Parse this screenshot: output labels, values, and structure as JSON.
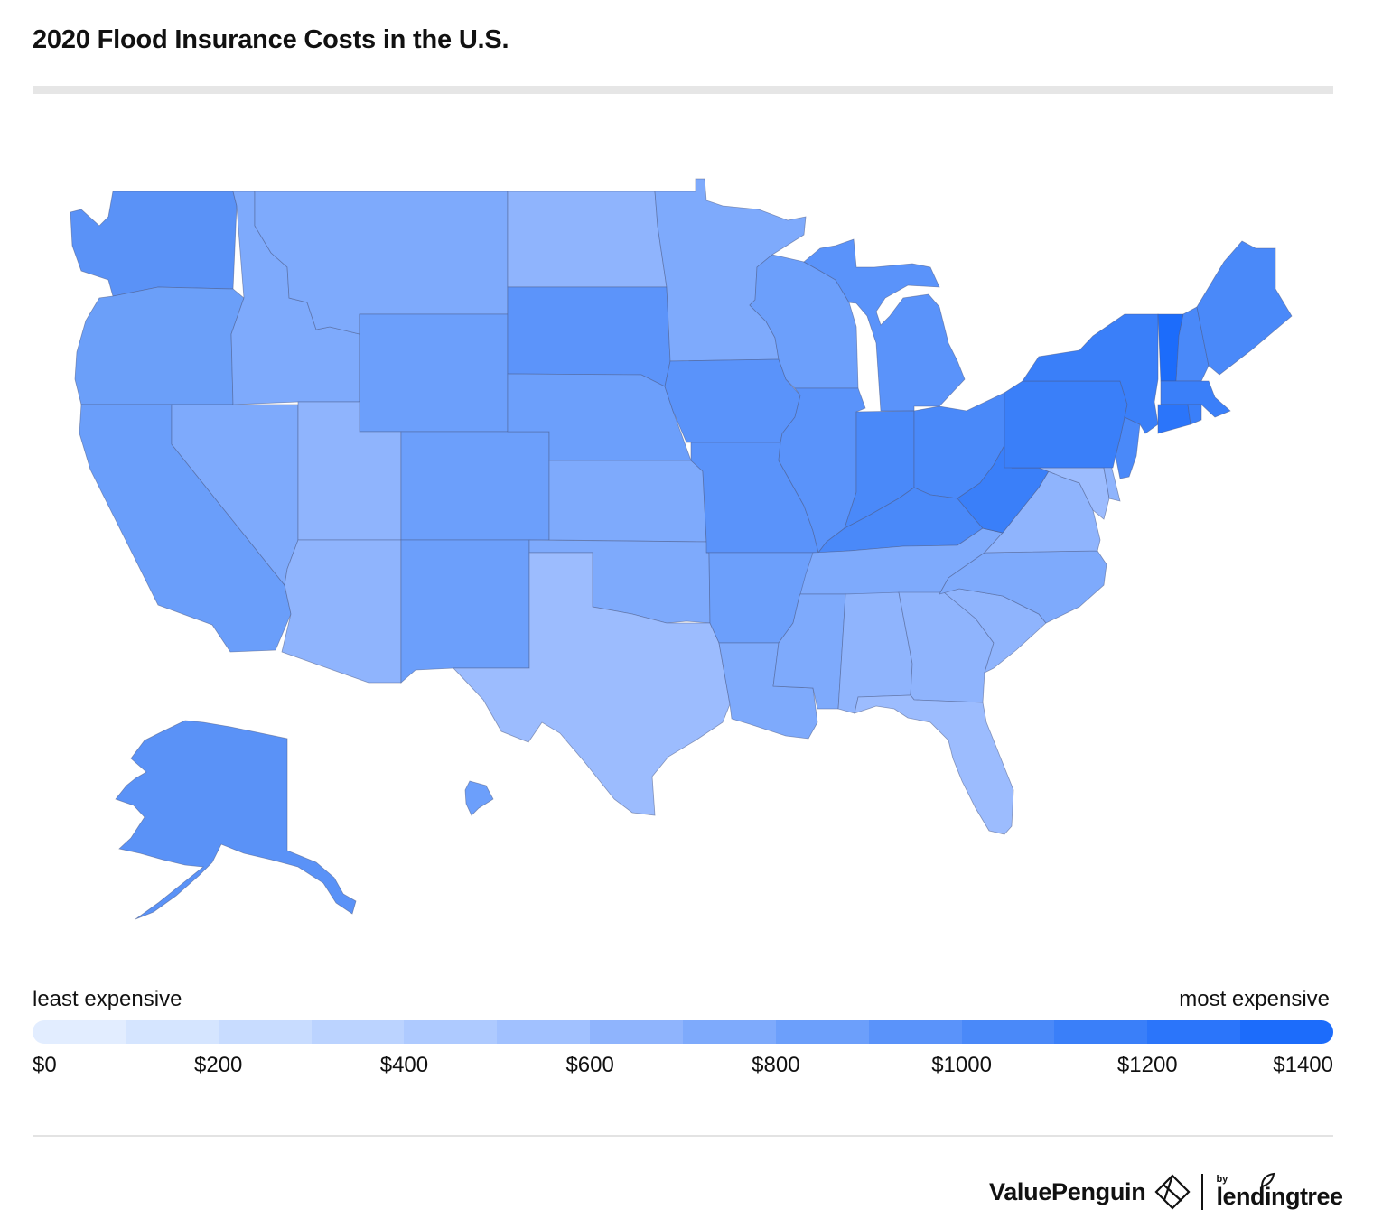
{
  "title": "2020 Flood Insurance Costs in the U.S.",
  "legend": {
    "low_label": "least expensive",
    "high_label": "most expensive",
    "scale_colors": [
      "#e2edff",
      "#d5e5ff",
      "#c8dcff",
      "#bbd3ff",
      "#aecaff",
      "#a1c1ff",
      "#8fb4fd",
      "#7eaafc",
      "#6c9ffb",
      "#5a93fa",
      "#4a89f9",
      "#3a7ff9",
      "#2b75fa",
      "#1c6cfb"
    ],
    "ticks": [
      "$0",
      "$200",
      "$400",
      "$600",
      "$800",
      "$1000",
      "$1200",
      "$1400"
    ]
  },
  "states": [
    {
      "id": "WA",
      "color": "#5a92f7"
    },
    {
      "id": "OR",
      "color": "#6b9ff9"
    },
    {
      "id": "CA",
      "color": "#6a9efa"
    },
    {
      "id": "NV",
      "color": "#7eaafc"
    },
    {
      "id": "ID",
      "color": "#7eaafc"
    },
    {
      "id": "MT",
      "color": "#7eaafc"
    },
    {
      "id": "WY",
      "color": "#6c9ffb"
    },
    {
      "id": "UT",
      "color": "#8fb4fd"
    },
    {
      "id": "AZ",
      "color": "#8fb4fd"
    },
    {
      "id": "CO",
      "color": "#6c9ffb"
    },
    {
      "id": "NM",
      "color": "#6c9ffb"
    },
    {
      "id": "ND",
      "color": "#8fb4fd"
    },
    {
      "id": "SD",
      "color": "#5c94fa"
    },
    {
      "id": "NE",
      "color": "#6c9ffb"
    },
    {
      "id": "KS",
      "color": "#7eaafc"
    },
    {
      "id": "OK",
      "color": "#7eaafc"
    },
    {
      "id": "TX",
      "color": "#9cbcfe"
    },
    {
      "id": "MN",
      "color": "#7eaafc"
    },
    {
      "id": "IA",
      "color": "#5a93fa"
    },
    {
      "id": "MO",
      "color": "#5a93fa"
    },
    {
      "id": "AR",
      "color": "#6c9ffb"
    },
    {
      "id": "LA",
      "color": "#7eaafc"
    },
    {
      "id": "WI",
      "color": "#6c9ffb"
    },
    {
      "id": "IL",
      "color": "#5a93fa"
    },
    {
      "id": "MS",
      "color": "#7eaafc"
    },
    {
      "id": "MI",
      "color": "#5a93fa"
    },
    {
      "id": "IN",
      "color": "#4a89f9"
    },
    {
      "id": "OH",
      "color": "#4a89f9"
    },
    {
      "id": "KY",
      "color": "#4a89f9"
    },
    {
      "id": "TN",
      "color": "#7eaafc"
    },
    {
      "id": "AL",
      "color": "#8fb4fd"
    },
    {
      "id": "GA",
      "color": "#8fb4fd"
    },
    {
      "id": "FL",
      "color": "#9cbcfe"
    },
    {
      "id": "SC",
      "color": "#8fb4fd"
    },
    {
      "id": "NC",
      "color": "#7eaafc"
    },
    {
      "id": "VA",
      "color": "#8fb4fd"
    },
    {
      "id": "WV",
      "color": "#3a7ff9"
    },
    {
      "id": "PA",
      "color": "#3a7ff9"
    },
    {
      "id": "NY",
      "color": "#3a7ff9"
    },
    {
      "id": "MD",
      "color": "#9cbcfe"
    },
    {
      "id": "DE",
      "color": "#8fb4fd"
    },
    {
      "id": "NJ",
      "color": "#4a89f9"
    },
    {
      "id": "VT",
      "color": "#1c6cfb"
    },
    {
      "id": "NH",
      "color": "#4a89f9"
    },
    {
      "id": "ME",
      "color": "#4a89f9"
    },
    {
      "id": "MA",
      "color": "#3a7ff9"
    },
    {
      "id": "CT",
      "color": "#2b75fa"
    },
    {
      "id": "RI",
      "color": "#3a7ff9"
    },
    {
      "id": "AK",
      "color": "#5a92f7"
    },
    {
      "id": "HI",
      "color": "#6c9ffb"
    }
  ],
  "branding": {
    "valuepenguin": "ValuePenguin",
    "by": "by",
    "lendingtree": "lendingtree"
  }
}
